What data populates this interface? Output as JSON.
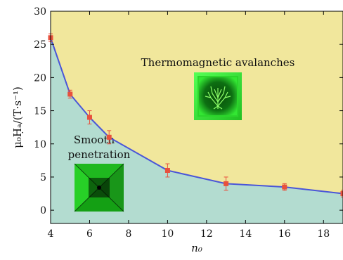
{
  "chart_data": {
    "type": "line",
    "x": [
      4,
      5,
      6,
      7,
      10,
      13,
      16,
      19
    ],
    "y": [
      26,
      17.5,
      14,
      11,
      6,
      4,
      3.5,
      2.5
    ],
    "yerr": [
      0.6,
      0.6,
      1.0,
      1.0,
      1.0,
      1.0,
      0.5,
      0.5
    ],
    "xlabel": "n₀",
    "ylabel": "μ₀Ḥₐ/(T·s⁻¹)",
    "xlim": [
      4,
      19
    ],
    "ylim": [
      -2,
      30
    ],
    "xticks": [
      "4",
      "6",
      "8",
      "10",
      "12",
      "14",
      "16",
      "18"
    ],
    "yticks": [
      "0",
      "5",
      "10",
      "15",
      "20",
      "25",
      "30"
    ],
    "grid": false,
    "region_labels": {
      "above": "Thermomagnetic avalanches",
      "below_line1": "Smooth",
      "below_line2": "penetration"
    },
    "colors": {
      "above_region": "#f1e79c",
      "below_region": "#b3dcd0",
      "line": "#4a55d8",
      "markers": "#e8503c"
    }
  }
}
